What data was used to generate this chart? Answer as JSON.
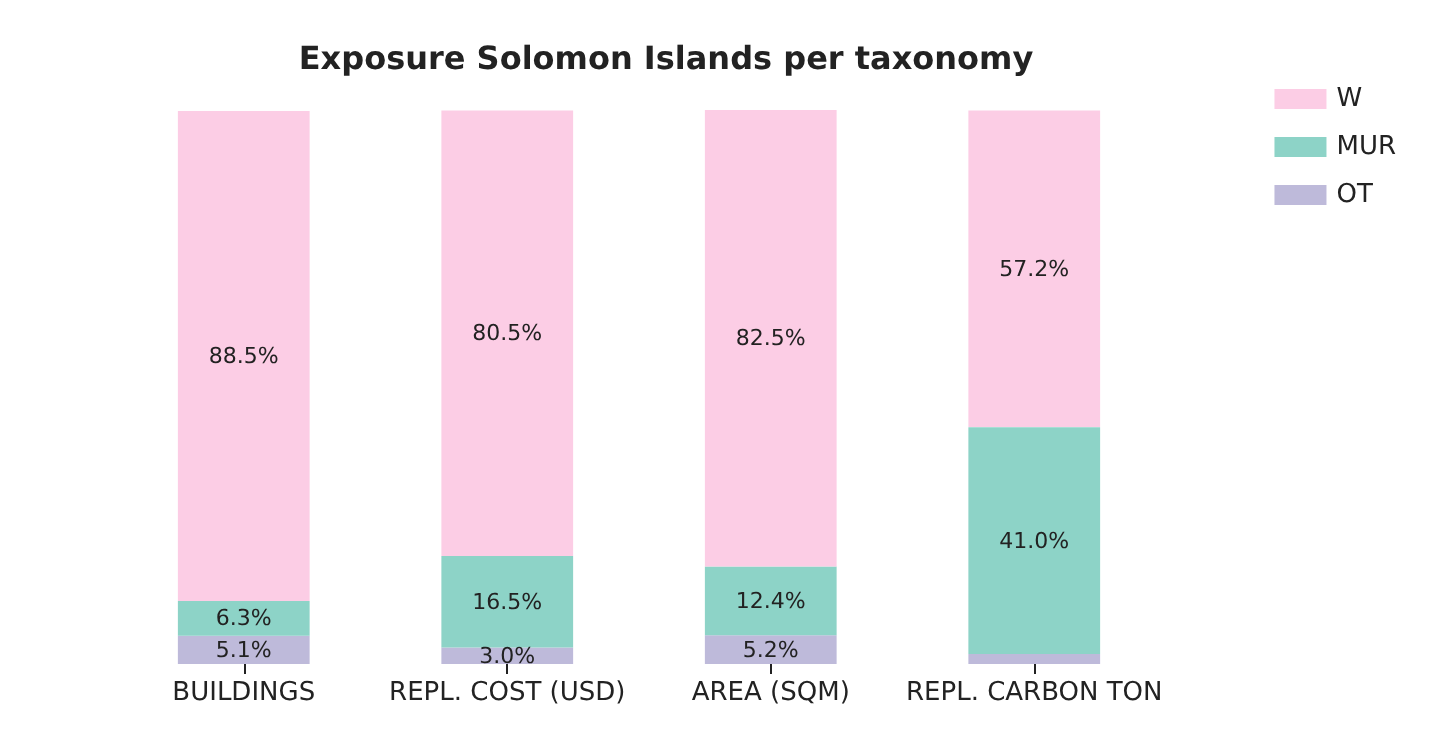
{
  "chart_data": {
    "type": "bar",
    "title": "Exposure Solomon Islands per taxonomy",
    "categories": [
      "BUILDINGS",
      "REPL. COST (USD)",
      "AREA (SQM)",
      "REPL. CARBON TON"
    ],
    "stacked": true,
    "legend": "top right",
    "grid": false,
    "series": [
      {
        "name": "OT",
        "color": "#bebada",
        "values": [
          5.1,
          3.0,
          5.2,
          1.8
        ],
        "value_labels": [
          "5.1%",
          "3.0%",
          "5.2%",
          null
        ]
      },
      {
        "name": "MUR",
        "color": "#8dd3c7",
        "values": [
          6.3,
          16.5,
          12.4,
          41.0
        ],
        "value_labels": [
          "6.3%",
          "16.5%",
          "12.4%",
          "41.0%"
        ]
      },
      {
        "name": "W",
        "color": "#fccde5",
        "values": [
          88.5,
          80.5,
          82.5,
          57.2
        ],
        "value_labels": [
          "88.5%",
          "80.5%",
          "82.5%",
          "57.2%"
        ]
      }
    ]
  }
}
